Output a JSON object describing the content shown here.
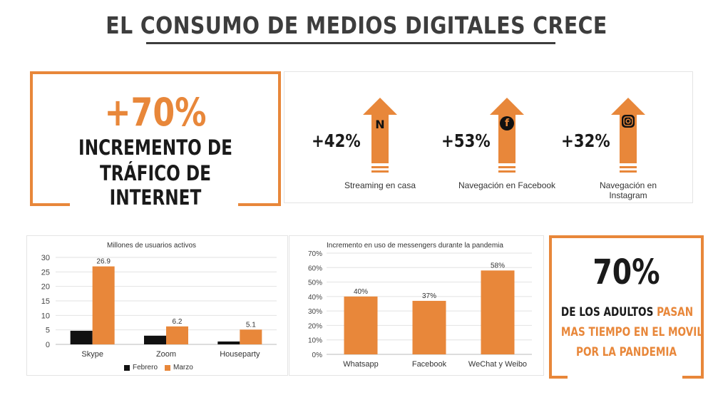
{
  "title": "EL CONSUMO DE MEDIOS DIGITALES CRECE",
  "main_stat": {
    "value": "+70%",
    "line1": "INCREMENTO DE",
    "line2": "TRÁFICO DE INTERNET"
  },
  "growth": [
    {
      "value": "+42%",
      "label": "Streaming en casa",
      "icon": "netflix-icon",
      "glyph": "N"
    },
    {
      "value": "+53%",
      "label": "Navegación en Facebook",
      "icon": "facebook-icon",
      "glyph": "f"
    },
    {
      "value": "+32%",
      "label_line1": "Navegación en",
      "label_line2": "Instagram",
      "icon": "instagram-icon"
    }
  ],
  "adults": {
    "value": "70%",
    "line1_a": "DE LOS ADULTOS",
    "line1_b": "PASAN",
    "line2": "MAS TIEMPO EN EL MOVIL",
    "line3": "POR LA PANDEMIA"
  },
  "colors": {
    "accent": "#e8873a",
    "dark": "#111111",
    "grid": "#e2e2e2"
  },
  "chart_data": [
    {
      "type": "bar",
      "title": "Millones de usuarios activos",
      "categories": [
        "Skype",
        "Zoom",
        "Houseparty"
      ],
      "series": [
        {
          "name": "Febrero",
          "values": [
            4.7,
            3,
            1
          ],
          "color": "#111111"
        },
        {
          "name": "Marzo",
          "values": [
            26.9,
            6.2,
            5.1
          ],
          "color": "#e8873a"
        }
      ],
      "data_labels": [
        "26.9",
        "6.2",
        "5.1"
      ],
      "yticks": [
        "30",
        "25",
        "20",
        "15",
        "10",
        "5",
        "0"
      ],
      "ylim": [
        0,
        30
      ],
      "grid": true,
      "legend": "bottom"
    },
    {
      "type": "bar",
      "title": "Incremento en uso de messengers durante la pandemia",
      "categories": [
        "Whatsapp",
        "Facebook",
        "WeChat y Weibo"
      ],
      "values": [
        40,
        37,
        58
      ],
      "data_labels": [
        "40%",
        "37%",
        "58%"
      ],
      "yticks": [
        "70%",
        "60%",
        "50%",
        "40%",
        "30%",
        "20%",
        "10%",
        "0%"
      ],
      "ylim": [
        0,
        70
      ],
      "grid": true,
      "legend": "none"
    }
  ]
}
